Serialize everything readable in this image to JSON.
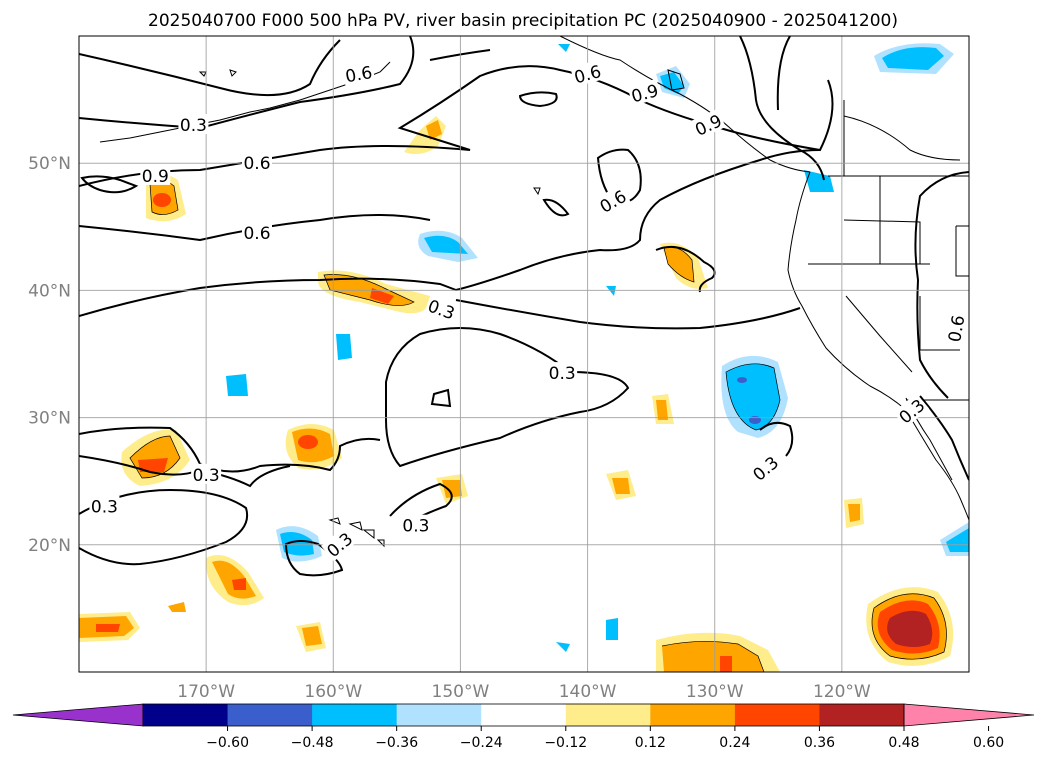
{
  "title": "2025040700 F000 500 hPa PV, river basin precipitation PC (2025040900 - 2025041200)",
  "map": {
    "lon_range": [
      -180,
      -110
    ],
    "lat_range": [
      10,
      60
    ],
    "lat_ticks": [
      {
        "value": 20,
        "label": "20°N"
      },
      {
        "value": 30,
        "label": "30°N"
      },
      {
        "value": 40,
        "label": "40°N"
      },
      {
        "value": 50,
        "label": "50°N"
      }
    ],
    "lon_ticks": [
      {
        "value": -170,
        "label": "170°W"
      },
      {
        "value": -160,
        "label": "160°W"
      },
      {
        "value": -150,
        "label": "150°W"
      },
      {
        "value": -140,
        "label": "140°W"
      },
      {
        "value": -130,
        "label": "130°W"
      },
      {
        "value": -120,
        "label": "120°W"
      }
    ],
    "gridlines": true
  },
  "contour_labels": [
    {
      "text": "0.3",
      "lon": -171.0,
      "lat": 53.0,
      "rot": 0
    },
    {
      "text": "0.6",
      "lon": -158.0,
      "lat": 57.0,
      "rot": -10
    },
    {
      "text": "0.6",
      "lon": -140.0,
      "lat": 57.0,
      "rot": -15
    },
    {
      "text": "0.9",
      "lon": -135.5,
      "lat": 55.5,
      "rot": -15
    },
    {
      "text": "0.9",
      "lon": -130.5,
      "lat": 53.0,
      "rot": -25
    },
    {
      "text": "0.9",
      "lon": -174.0,
      "lat": 49.0,
      "rot": 0
    },
    {
      "text": "0.6",
      "lon": -166.0,
      "lat": 50.0,
      "rot": 0
    },
    {
      "text": "0.6",
      "lon": -138.0,
      "lat": 47.0,
      "rot": -30
    },
    {
      "text": "0.6",
      "lon": -166.0,
      "lat": 44.5,
      "rot": 0
    },
    {
      "text": "0.3",
      "lon": -151.5,
      "lat": 38.5,
      "rot": 20
    },
    {
      "text": "0.3",
      "lon": -142.0,
      "lat": 33.5,
      "rot": 0
    },
    {
      "text": "0.6",
      "lon": -111.0,
      "lat": 37.0,
      "rot": -80
    },
    {
      "text": "0.3",
      "lon": -114.5,
      "lat": 30.5,
      "rot": -40
    },
    {
      "text": "0.3",
      "lon": -126.0,
      "lat": 26.0,
      "rot": -40
    },
    {
      "text": "0.3",
      "lon": -170.0,
      "lat": 25.5,
      "rot": 0
    },
    {
      "text": "0.3",
      "lon": -178.0,
      "lat": 23.0,
      "rot": 0
    },
    {
      "text": "0.3",
      "lon": -153.5,
      "lat": 21.5,
      "rot": 0
    },
    {
      "text": "0.3",
      "lon": -159.5,
      "lat": 20.0,
      "rot": -40
    }
  ],
  "colorbar": {
    "colors": [
      "#9932cc",
      "#00008b",
      "#3a5fcd",
      "#00bfff",
      "#b0e2ff",
      "#ffffff",
      "#ffec8b",
      "#ffa500",
      "#ff4500",
      "#b22222",
      "#ff82ab"
    ],
    "tick_labels": [
      "−0.60",
      "−0.48",
      "−0.36",
      "−0.24",
      "−0.12",
      "0.12",
      "0.24",
      "0.36",
      "0.48",
      "0.60"
    ]
  }
}
